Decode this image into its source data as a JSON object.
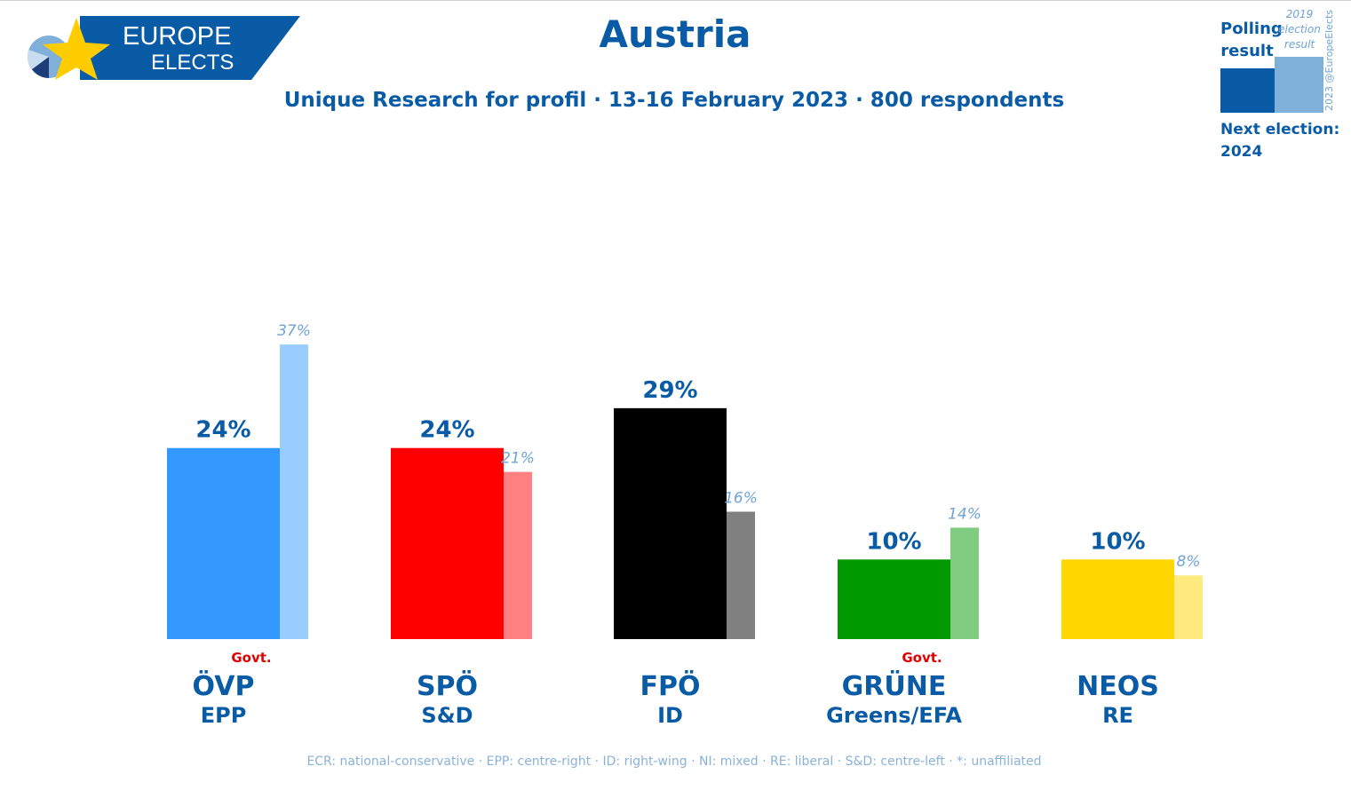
{
  "title": "Austria",
  "subtitle": "Unique Research for profil · 13-16 February 2023 · 800 respondents",
  "logo": {
    "line1": "EUROPE",
    "line2": "ELECTS"
  },
  "legend": {
    "polling_label": "Polling result",
    "previous_label": "2019 election result",
    "next_election_label": "Next election:",
    "next_election_year": "2024"
  },
  "credit": "2023 @EuropeElects",
  "footer": "ECR: national-conservative · EPP: centre-right · ID: right-wing · NI: mixed · RE: liberal · S&D: centre-left · *: unaffiliated",
  "chart_data": {
    "type": "bar",
    "title": "Austria",
    "categories": [
      "ÖVP",
      "SPÖ",
      "FPÖ",
      "GRÜNE",
      "NEOS"
    ],
    "groups": [
      "EPP",
      "S&D",
      "ID",
      "Greens/EFA",
      "RE"
    ],
    "government": [
      true,
      false,
      false,
      true,
      false
    ],
    "government_label": "Govt.",
    "series": [
      {
        "name": "Polling result",
        "values": [
          24,
          24,
          29,
          10,
          10
        ],
        "labels": [
          "24%",
          "24%",
          "29%",
          "10%",
          "10%"
        ]
      },
      {
        "name": "2019 election result",
        "values": [
          37,
          21,
          16,
          14,
          8
        ],
        "labels": [
          "37%",
          "21%",
          "16%",
          "14%",
          "8%"
        ]
      }
    ],
    "colors": {
      "poll": [
        "#3399ff",
        "#ff0000",
        "#000000",
        "#009900",
        "#ffd700"
      ],
      "previous": [
        "#99ccff",
        "#ff8080",
        "#808080",
        "#80cc80",
        "#ffea80"
      ],
      "text": "#0a5ba6",
      "previous_text": "#6fa3d4",
      "govt": "#e00000"
    },
    "ylim": [
      0,
      40
    ],
    "xlabel": "",
    "ylabel": ""
  }
}
